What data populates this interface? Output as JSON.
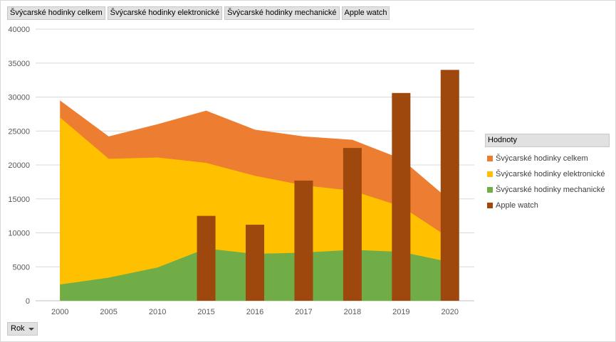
{
  "field_buttons": [
    "Švýcarské hodinky celkem",
    "Švýcarské hodinky elektronické",
    "Švýcarské hodinky mechanické",
    "Apple watch"
  ],
  "legend": {
    "title": "Hodnoty",
    "position": "right"
  },
  "row_field": {
    "label": "Rok",
    "icon": "dropdown-arrow-icon"
  },
  "chart_data": {
    "type": "area",
    "categories": [
      "2000",
      "2005",
      "2010",
      "2015",
      "2016",
      "2017",
      "2018",
      "2019",
      "2020"
    ],
    "ylim": [
      0,
      40000
    ],
    "yticks": [
      0,
      5000,
      10000,
      15000,
      20000,
      25000,
      30000,
      35000,
      40000
    ],
    "grid": true,
    "series": [
      {
        "name": "Švýcarské hodinky celkem",
        "type": "area",
        "color": "#ed7d31",
        "values": [
          29500,
          24200,
          26000,
          28000,
          25200,
          24200,
          23700,
          20900,
          14800
        ]
      },
      {
        "name": "Švýcarské hodinky elektronické",
        "type": "area",
        "color": "#ffc000",
        "values": [
          27000,
          20900,
          21100,
          20300,
          18400,
          17000,
          16200,
          13900,
          9200
        ]
      },
      {
        "name": "Švýcarské hodinky mechanické",
        "type": "area",
        "color": "#70ad47",
        "values": [
          2400,
          3400,
          4900,
          7700,
          6900,
          7100,
          7500,
          7200,
          5700
        ]
      },
      {
        "name": "Apple watch",
        "type": "bar",
        "color": "#9e480e",
        "values": [
          null,
          null,
          null,
          12500,
          11200,
          17700,
          22500,
          30600,
          34000
        ]
      }
    ]
  }
}
